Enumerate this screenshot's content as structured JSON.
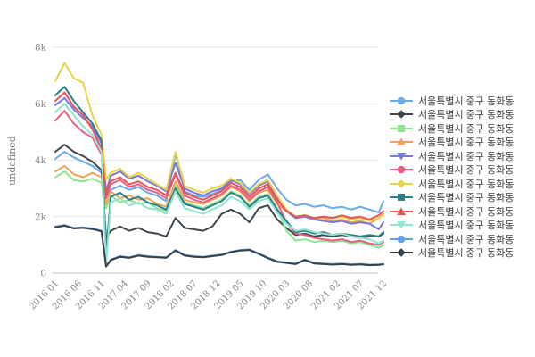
{
  "colors": {
    "background": "#ffffff",
    "grid": "#e2e5e8",
    "zero_line": "#b6c3ce",
    "tick_text": "#868686",
    "axis_title_text": "#7d7d7d",
    "legend_text": "#3f3f3f"
  },
  "chart_data": {
    "type": "line",
    "title": "",
    "xlabel": "",
    "ylabel": "undefined",
    "ylim": [
      0,
      8000
    ],
    "grid": "horizontal-only",
    "legend_position": "right",
    "x_max": 71,
    "y_ticks": [
      {
        "value": 0,
        "label": "0"
      },
      {
        "value": 2000,
        "label": "2k"
      },
      {
        "value": 4000,
        "label": "4k"
      },
      {
        "value": 6000,
        "label": "6k"
      },
      {
        "value": 8000,
        "label": "8k"
      }
    ],
    "x_ticks": [
      {
        "index": 0,
        "label": "2016 01"
      },
      {
        "index": 5,
        "label": "2016 06"
      },
      {
        "index": 10,
        "label": "2016 11"
      },
      {
        "index": 15,
        "label": "2017 04"
      },
      {
        "index": 20,
        "label": "2017 09"
      },
      {
        "index": 25,
        "label": "2018 02"
      },
      {
        "index": 30,
        "label": "2018 07"
      },
      {
        "index": 35,
        "label": "2018 12"
      },
      {
        "index": 40,
        "label": "2019 05"
      },
      {
        "index": 45,
        "label": "2019 10"
      },
      {
        "index": 50,
        "label": "2020 03"
      },
      {
        "index": 55,
        "label": "2020 08"
      },
      {
        "index": 61,
        "label": "2021 02"
      },
      {
        "index": 66,
        "label": "2021 07"
      },
      {
        "index": 71,
        "label": "2021 12"
      }
    ],
    "x": [
      0,
      2,
      4,
      6,
      8,
      10,
      11,
      12,
      14,
      16,
      18,
      20,
      22,
      24,
      26,
      28,
      30,
      32,
      34,
      36,
      38,
      40,
      42,
      44,
      46,
      48,
      50,
      52,
      54,
      56,
      58,
      60,
      62,
      64,
      66,
      68,
      70,
      71
    ],
    "series": [
      {
        "name": "서울특별시 중구 동화동",
        "marker": "circle",
        "color": "#6aabea",
        "values": [
          4050,
          4300,
          4100,
          3950,
          3800,
          3550,
          2700,
          2950,
          3100,
          2950,
          3050,
          2850,
          2750,
          2550,
          4250,
          2900,
          2750,
          2700,
          2800,
          2950,
          3250,
          3300,
          2950,
          3300,
          3500,
          3000,
          2600,
          2400,
          2450,
          2350,
          2400,
          2300,
          2350,
          2250,
          2350,
          2250,
          2150,
          2550
        ]
      },
      {
        "name": "서울특별시 중구 동화동",
        "marker": "diamond",
        "color": "#3f474e",
        "values": [
          4300,
          4550,
          4300,
          4150,
          3950,
          3650,
          1250,
          1500,
          1650,
          1500,
          1600,
          1450,
          1400,
          1300,
          1950,
          1600,
          1550,
          1500,
          1650,
          2100,
          2250,
          2100,
          1800,
          2300,
          2400,
          1900,
          1600,
          1350,
          1400,
          1300,
          1350,
          1300,
          1350,
          1300,
          1250,
          1300,
          1300,
          1400
        ]
      },
      {
        "name": "서울특별시 중구 동화동",
        "marker": "square",
        "color": "#8ce68c",
        "values": [
          3400,
          3600,
          3300,
          3250,
          3350,
          3200,
          2300,
          2750,
          2500,
          2600,
          2450,
          2500,
          2300,
          2200,
          3100,
          2500,
          2400,
          2300,
          2450,
          2600,
          2900,
          2750,
          2400,
          2700,
          2800,
          2300,
          1500,
          1150,
          1200,
          1100,
          1150,
          1100,
          1150,
          1050,
          1100,
          1000,
          900,
          1000
        ]
      },
      {
        "name": "서울특별시 중구 동화동",
        "marker": "triangle-up",
        "color": "#f2a254",
        "values": [
          3600,
          3800,
          3500,
          3400,
          3550,
          3400,
          2450,
          2900,
          2650,
          2750,
          2600,
          2650,
          2450,
          2350,
          3250,
          2600,
          2500,
          2450,
          2600,
          2750,
          3050,
          2900,
          2550,
          2850,
          2950,
          2450,
          2200,
          1950,
          2000,
          1900,
          1950,
          1850,
          1900,
          1800,
          1850,
          1750,
          1950,
          2100
        ]
      },
      {
        "name": "서울특별시 중구 동화동",
        "marker": "triangle-down",
        "color": "#7678dd",
        "values": [
          5950,
          6200,
          5800,
          5500,
          5200,
          4600,
          2900,
          3450,
          3600,
          3350,
          3450,
          3250,
          3100,
          2900,
          3900,
          3000,
          2850,
          2750,
          2900,
          3000,
          3300,
          3150,
          2800,
          3100,
          3250,
          2700,
          2200,
          1950,
          2000,
          1900,
          1850,
          1800,
          1850,
          1750,
          1800,
          1750,
          1550,
          1800
        ]
      },
      {
        "name": "서울특별시 중구 동화동",
        "marker": "circle",
        "color": "#ec5f84",
        "values": [
          5400,
          5750,
          5300,
          5000,
          4800,
          4200,
          2650,
          3150,
          3300,
          3050,
          3150,
          2950,
          2850,
          2650,
          3500,
          2750,
          2600,
          2500,
          2650,
          2800,
          3100,
          2950,
          2600,
          2900,
          3050,
          2500,
          1800,
          1400,
          1350,
          1250,
          1200,
          1150,
          1200,
          1100,
          1150,
          1050,
          1000,
          1100
        ]
      },
      {
        "name": "서울특별시 중구 동화동",
        "marker": "diamond",
        "color": "#e7d348",
        "values": [
          6800,
          7450,
          6900,
          6750,
          5600,
          4900,
          3300,
          3550,
          3700,
          3400,
          3550,
          3350,
          3150,
          2950,
          4300,
          3100,
          2950,
          2850,
          3000,
          3100,
          3350,
          3200,
          2850,
          3150,
          3300,
          2750,
          2250,
          2000,
          2050,
          1950,
          2000,
          1950,
          2000,
          1900,
          1950,
          1850,
          1950,
          2050
        ]
      },
      {
        "name": "서울특별시 중구 동화동",
        "marker": "square",
        "color": "#2b7f8a",
        "values": [
          6300,
          6600,
          6100,
          5700,
          5300,
          4700,
          700,
          2700,
          2850,
          2600,
          2700,
          2500,
          2400,
          2250,
          3000,
          2450,
          2350,
          2250,
          2400,
          2550,
          2850,
          2700,
          2350,
          2650,
          2750,
          2250,
          1850,
          1450,
          1500,
          1400,
          1450,
          1350,
          1400,
          1350,
          1300,
          1350,
          1300,
          1450
        ]
      },
      {
        "name": "서울특별시 중구 동화동",
        "marker": "triangle-up",
        "color": "#ea5254",
        "values": [
          6100,
          6400,
          5900,
          5600,
          5100,
          4400,
          2750,
          3250,
          3400,
          3150,
          3250,
          3050,
          2950,
          2750,
          3550,
          2850,
          2700,
          2600,
          2750,
          2900,
          3200,
          3050,
          2700,
          3000,
          3150,
          2600,
          2200,
          2000,
          2050,
          1950,
          2000,
          1950,
          2050,
          1950,
          2000,
          1900,
          2050,
          2200
        ]
      },
      {
        "name": "서울특별시 중구 동화동",
        "marker": "triangle-down",
        "color": "#8fe5d0",
        "values": [
          5700,
          6000,
          5600,
          5200,
          4900,
          4300,
          300,
          2500,
          2650,
          2400,
          2500,
          2300,
          2250,
          2100,
          2900,
          2300,
          2200,
          2100,
          2250,
          2400,
          2700,
          2550,
          2250,
          2550,
          2650,
          2150,
          1750,
          1500,
          1550,
          1450,
          1400,
          1350,
          1400,
          1300,
          1250,
          1200,
          1050,
          1150
        ]
      },
      {
        "name": "서울특별시 중구 동화동",
        "marker": "circle",
        "color": "#5fa2e8",
        "values": [
          1650,
          1700,
          1600,
          1620,
          1580,
          1500,
          250,
          480,
          600,
          560,
          640,
          600,
          580,
          560,
          820,
          640,
          600,
          580,
          620,
          660,
          760,
          820,
          840,
          700,
          550,
          420,
          380,
          340,
          480,
          360,
          340,
          320,
          340,
          310,
          330,
          300,
          310,
          330
        ]
      },
      {
        "name": "서울특별시 중구 동화동",
        "marker": "diamond",
        "color": "#36424b",
        "values": [
          1620,
          1680,
          1580,
          1600,
          1560,
          1480,
          230,
          460,
          580,
          540,
          620,
          580,
          560,
          540,
          800,
          620,
          580,
          560,
          600,
          640,
          740,
          800,
          820,
          680,
          530,
          400,
          360,
          320,
          460,
          340,
          320,
          300,
          320,
          290,
          310,
          280,
          290,
          310
        ]
      }
    ]
  }
}
